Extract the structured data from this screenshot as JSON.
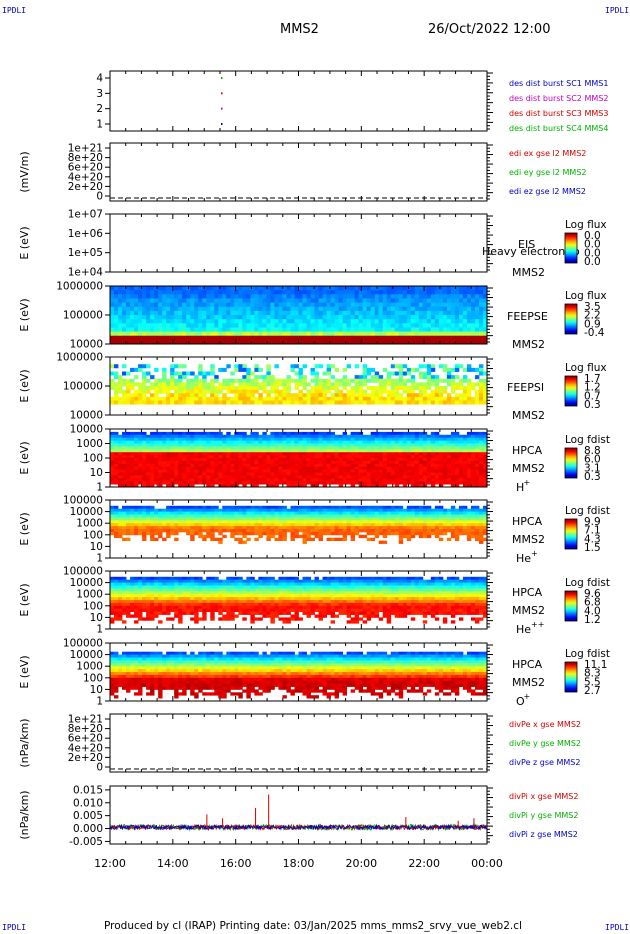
{
  "corner_label": "IPDLI",
  "header": {
    "spacecraft": "MMS2",
    "datetime": "26/Oct/2022 12:00"
  },
  "footer": {
    "text": "Produced by cl (IRAP)    Printing date: 03/Jan/2025    mms_mms2_srvy_vue_web2.cl"
  },
  "x_ticks": [
    "12:00",
    "14:00",
    "16:00",
    "18:00",
    "20:00",
    "22:00",
    "00:00"
  ],
  "chart_data": [
    {
      "type": "scatter",
      "id": "burst",
      "yticks": [
        "4",
        "3",
        "2",
        "1"
      ],
      "legend": [
        {
          "label": "des dist burst SC1 MMS1",
          "color": "#0000c0"
        },
        {
          "label": "des dist burst SC2 MMS2",
          "color": "#c000c0"
        },
        {
          "label": "des dist burst SC3 MMS3",
          "color": "#d00000"
        },
        {
          "label": "des dist burst SC4 MMS4",
          "color": "#00b000"
        }
      ],
      "points": [
        {
          "x": "15:32",
          "y": 4,
          "color": "#00b000"
        },
        {
          "x": "15:32",
          "y": 3,
          "color": "#d00000"
        },
        {
          "x": "15:32",
          "y": 2,
          "color": "#c000c0"
        },
        {
          "x": "15:32",
          "y": 1,
          "color": "#0000c0"
        }
      ]
    },
    {
      "type": "line",
      "id": "edi",
      "ylabel": "(mV/m)",
      "yticks": [
        "1e+21",
        "8e+20",
        "6e+20",
        "4e+20",
        "2e+20",
        "0"
      ],
      "legend": [
        {
          "label": "edi ex gse l2 MMS2",
          "color": "#d00000"
        },
        {
          "label": "edi ey gse l2 MMS2",
          "color": "#00b000"
        },
        {
          "label": "edi ez gse l2 MMS2",
          "color": "#0000c0"
        }
      ]
    },
    {
      "type": "heatmap",
      "id": "eis",
      "ylabel": "E (eV)",
      "yticks": [
        "1e+07",
        "1e+06",
        "1e+05",
        "1e+04"
      ],
      "right_labels": [
        "EIS",
        "MMS2"
      ],
      "overlay_text": "Heavy electron to",
      "colorbar_title": "Log flux",
      "colorbar_ticks": [
        "0.0",
        "0.0",
        "0.0",
        "0.0"
      ]
    },
    {
      "type": "heatmap",
      "id": "feepse",
      "ylabel": "E (eV)",
      "yticks": [
        "1000000",
        "100000",
        "10000"
      ],
      "right_labels": [
        "FEEPSE",
        "MMS2"
      ],
      "colorbar_title": "Log flux",
      "colorbar_ticks": [
        "3.5",
        "2.2",
        "0.9",
        "-0.4"
      ]
    },
    {
      "type": "heatmap",
      "id": "feepsi",
      "ylabel": "E (eV)",
      "yticks": [
        "1000000",
        "100000",
        "10000"
      ],
      "right_labels": [
        "FEEPSI",
        "MMS2"
      ],
      "colorbar_title": "Log flux",
      "colorbar_ticks": [
        "1.7",
        "1.2",
        "0.7",
        "0.3"
      ]
    },
    {
      "type": "heatmap",
      "id": "hpca_h",
      "ylabel": "E (eV)",
      "yticks": [
        "10000",
        "1000",
        "100",
        "10",
        "1"
      ],
      "right_labels": [
        "HPCA",
        "MMS2",
        "H",
        "+"
      ],
      "colorbar_title": "Log fdist",
      "colorbar_ticks": [
        "8.8",
        "6.0",
        "3.1",
        "0.3"
      ]
    },
    {
      "type": "heatmap",
      "id": "hpca_he",
      "ylabel": "E (eV)",
      "yticks": [
        "100000",
        "10000",
        "1000",
        "100",
        "10",
        "1"
      ],
      "right_labels": [
        "HPCA",
        "MMS2",
        "He",
        "+"
      ],
      "colorbar_title": "Log fdist",
      "colorbar_ticks": [
        "9.9",
        "7.1",
        "4.3",
        "1.5"
      ]
    },
    {
      "type": "heatmap",
      "id": "hpca_hepp",
      "ylabel": "E (eV)",
      "yticks": [
        "100000",
        "10000",
        "1000",
        "100",
        "10",
        "1"
      ],
      "right_labels": [
        "HPCA",
        "MMS2",
        "He",
        "++"
      ],
      "colorbar_title": "Log fdist",
      "colorbar_ticks": [
        "9.6",
        "6.8",
        "4.0",
        "1.2"
      ]
    },
    {
      "type": "heatmap",
      "id": "hpca_o",
      "ylabel": "E (eV)",
      "yticks": [
        "100000",
        "10000",
        "1000",
        "100",
        "10",
        "1"
      ],
      "right_labels": [
        "HPCA",
        "MMS2",
        "O",
        "+"
      ],
      "colorbar_title": "Log fdist",
      "colorbar_ticks": [
        "11.1",
        "8.3",
        "5.5",
        "2.7"
      ]
    },
    {
      "type": "line",
      "id": "divpe",
      "ylabel": "(nPa/km)",
      "yticks": [
        "1e+21",
        "8e+20",
        "6e+20",
        "4e+20",
        "2e+20",
        "0"
      ],
      "legend": [
        {
          "label": "divPe x gse MMS2",
          "color": "#d00000"
        },
        {
          "label": "divPe y gse MMS2",
          "color": "#00b000"
        },
        {
          "label": "divPe z gse MMS2",
          "color": "#0000c0"
        }
      ]
    },
    {
      "type": "line",
      "id": "divpi",
      "ylabel": "(nPa/km)",
      "yticks": [
        "0.015",
        "0.010",
        "0.005",
        "0.000",
        "-0.005"
      ],
      "ylim": [
        -0.006,
        0.0165
      ],
      "legend": [
        {
          "label": "divPi x gse MMS2",
          "color": "#d00000"
        },
        {
          "label": "divPi y gse MMS2",
          "color": "#00b000"
        },
        {
          "label": "divPi z gse MMS2",
          "color": "#0000c0"
        }
      ],
      "spikes": [
        {
          "x": "15:05",
          "y": 0.0055
        },
        {
          "x": "15:35",
          "y": 0.004
        },
        {
          "x": "16:38",
          "y": 0.008
        },
        {
          "x": "17:03",
          "y": 0.0132
        },
        {
          "x": "21:25",
          "y": 0.0045
        },
        {
          "x": "23:05",
          "y": 0.003
        },
        {
          "x": "23:35",
          "y": 0.004
        }
      ]
    }
  ]
}
